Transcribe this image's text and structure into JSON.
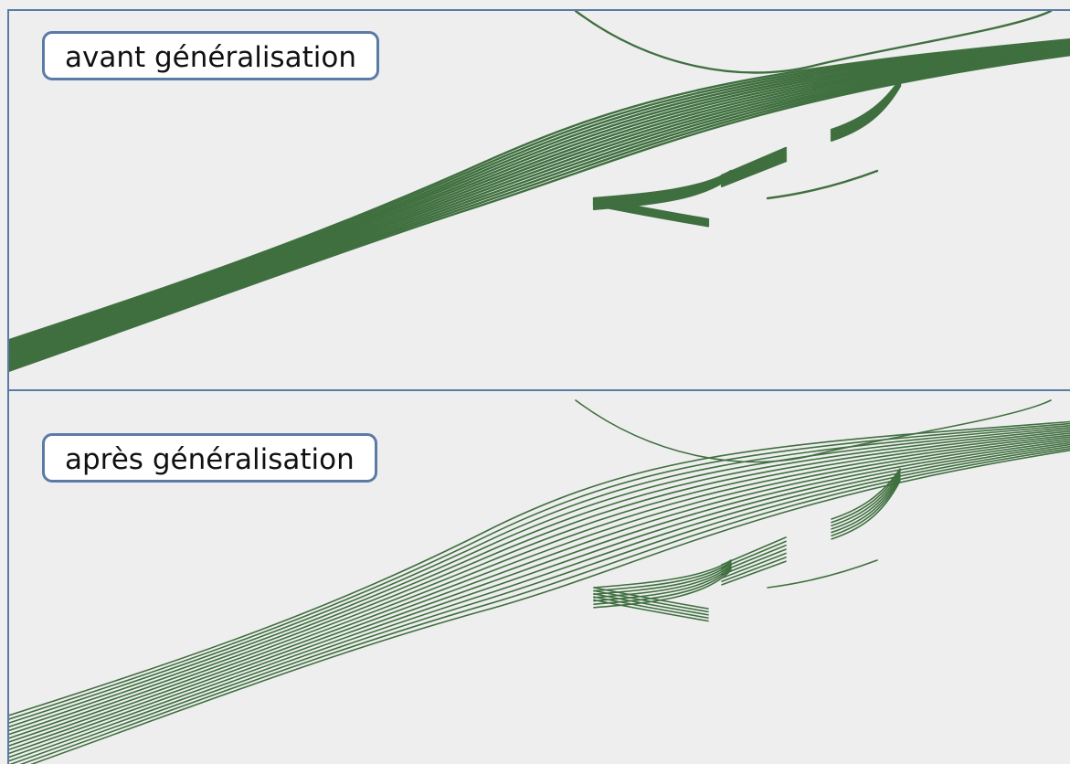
{
  "panels": {
    "before": {
      "label": "avant généralisation"
    },
    "after": {
      "label": "après généralisation"
    }
  },
  "colors": {
    "track": "#3f6f3f",
    "border": "#5b7ba6",
    "background": "#eeeeee"
  }
}
